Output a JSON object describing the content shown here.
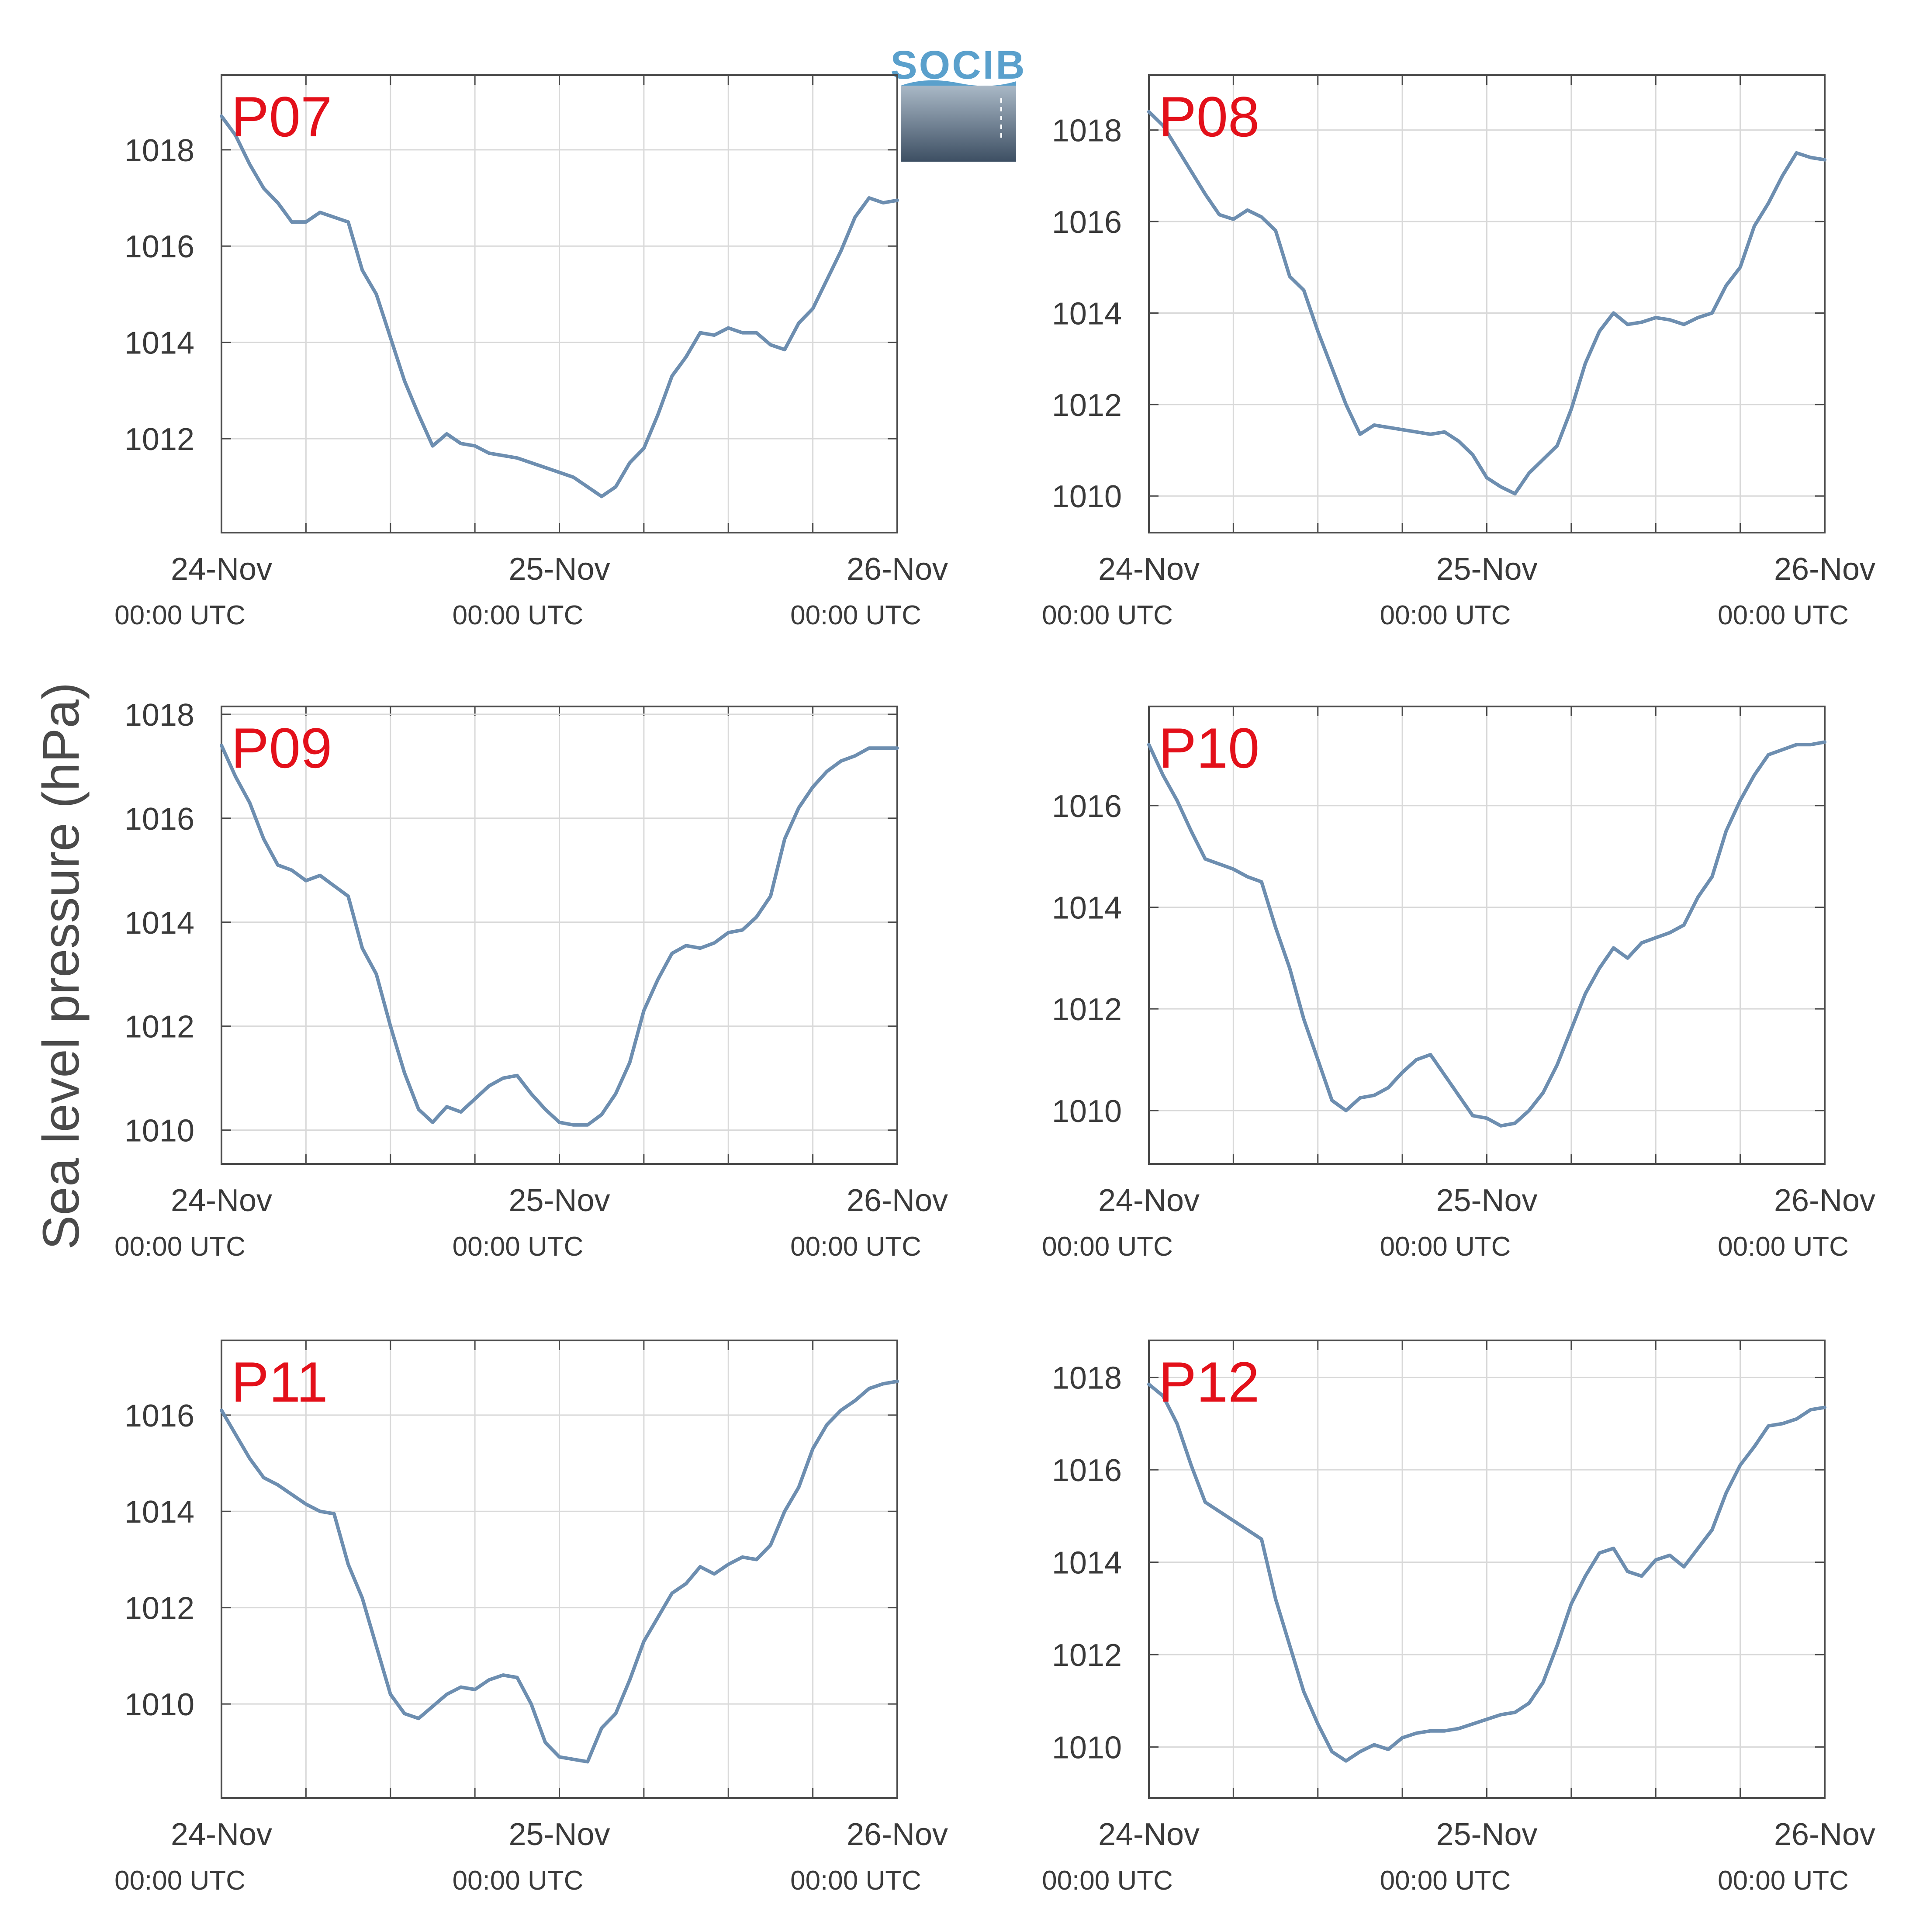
{
  "logo": {
    "text": "SOCIB"
  },
  "figure": {
    "ylabel": "Sea level pressure (hPa)",
    "line_color": "#6d8eb0",
    "panel_label_color": "#e3101a",
    "grid_color": "#d9d9d9",
    "axis_color": "#4a4a4a"
  },
  "chart_data": [
    {
      "type": "line",
      "label": "P07",
      "xlim": [
        0,
        48
      ],
      "ylim": [
        1010.05,
        1019.55
      ],
      "x_ticks": [
        0,
        24,
        48
      ],
      "x_tick_labels": [
        "24-Nov",
        "25-Nov",
        "26-Nov"
      ],
      "x_tick_sublabels": [
        "00:00 UTC",
        "00:00 UTC",
        "00:00 UTC"
      ],
      "y_ticks": [
        1012,
        1014,
        1016,
        1018
      ],
      "grid": true,
      "x": [
        0,
        1,
        2,
        3,
        4,
        5,
        6,
        7,
        8,
        9,
        10,
        11,
        12,
        13,
        14,
        15,
        16,
        17,
        18,
        19,
        20,
        21,
        22,
        23,
        24,
        25,
        26,
        27,
        28,
        29,
        30,
        31,
        32,
        33,
        34,
        35,
        36,
        37,
        38,
        39,
        40,
        41,
        42,
        43,
        44,
        45,
        46,
        47,
        48
      ],
      "y": [
        1018.7,
        1018.3,
        1017.7,
        1017.2,
        1016.9,
        1016.5,
        1016.5,
        1016.7,
        1016.6,
        1016.5,
        1015.5,
        1015.0,
        1014.1,
        1013.2,
        1012.5,
        1011.85,
        1012.1,
        1011.9,
        1011.85,
        1011.7,
        1011.65,
        1011.6,
        1011.5,
        1011.4,
        1011.3,
        1011.2,
        1011.0,
        1010.8,
        1011.0,
        1011.5,
        1011.8,
        1012.5,
        1013.3,
        1013.7,
        1014.2,
        1014.15,
        1014.3,
        1014.2,
        1014.2,
        1013.95,
        1013.85,
        1014.4,
        1014.7,
        1015.3,
        1015.9,
        1016.6,
        1017.0,
        1016.9,
        1016.95
      ]
    },
    {
      "type": "line",
      "label": "P08",
      "xlim": [
        0,
        48
      ],
      "ylim": [
        1009.2,
        1019.2
      ],
      "x_ticks": [
        0,
        24,
        48
      ],
      "x_tick_labels": [
        "24-Nov",
        "25-Nov",
        "26-Nov"
      ],
      "x_tick_sublabels": [
        "00:00 UTC",
        "00:00 UTC",
        "00:00 UTC"
      ],
      "y_ticks": [
        1010,
        1012,
        1014,
        1016,
        1018
      ],
      "grid": true,
      "x": [
        0,
        1,
        2,
        3,
        4,
        5,
        6,
        7,
        8,
        9,
        10,
        11,
        12,
        13,
        14,
        15,
        16,
        17,
        18,
        19,
        20,
        21,
        22,
        23,
        24,
        25,
        26,
        27,
        28,
        29,
        30,
        31,
        32,
        33,
        34,
        35,
        36,
        37,
        38,
        39,
        40,
        41,
        42,
        43,
        44,
        45,
        46,
        47,
        48
      ],
      "y": [
        1018.4,
        1018.1,
        1017.6,
        1017.1,
        1016.6,
        1016.15,
        1016.05,
        1016.25,
        1016.1,
        1015.8,
        1014.8,
        1014.5,
        1013.6,
        1012.8,
        1012.0,
        1011.35,
        1011.55,
        1011.5,
        1011.45,
        1011.4,
        1011.35,
        1011.4,
        1011.2,
        1010.9,
        1010.4,
        1010.2,
        1010.05,
        1010.5,
        1010.8,
        1011.1,
        1011.9,
        1012.9,
        1013.6,
        1014.0,
        1013.75,
        1013.8,
        1013.9,
        1013.85,
        1013.75,
        1013.9,
        1014.0,
        1014.6,
        1015.0,
        1015.9,
        1016.4,
        1017.0,
        1017.5,
        1017.4,
        1017.35
      ]
    },
    {
      "type": "line",
      "label": "P09",
      "xlim": [
        0,
        48
      ],
      "ylim": [
        1009.35,
        1018.15
      ],
      "x_ticks": [
        0,
        24,
        48
      ],
      "x_tick_labels": [
        "24-Nov",
        "25-Nov",
        "26-Nov"
      ],
      "x_tick_sublabels": [
        "00:00 UTC",
        "00:00 UTC",
        "00:00 UTC"
      ],
      "y_ticks": [
        1010,
        1012,
        1014,
        1016,
        1018
      ],
      "grid": true,
      "x": [
        0,
        1,
        2,
        3,
        4,
        5,
        6,
        7,
        8,
        9,
        10,
        11,
        12,
        13,
        14,
        15,
        16,
        17,
        18,
        19,
        20,
        21,
        22,
        23,
        24,
        25,
        26,
        27,
        28,
        29,
        30,
        31,
        32,
        33,
        34,
        35,
        36,
        37,
        38,
        39,
        40,
        41,
        42,
        43,
        44,
        45,
        46,
        47,
        48
      ],
      "y": [
        1017.4,
        1016.8,
        1016.3,
        1015.6,
        1015.1,
        1015.0,
        1014.8,
        1014.9,
        1014.7,
        1014.5,
        1013.5,
        1013.0,
        1012.0,
        1011.1,
        1010.4,
        1010.15,
        1010.45,
        1010.35,
        1010.6,
        1010.85,
        1011.0,
        1011.05,
        1010.7,
        1010.4,
        1010.15,
        1010.1,
        1010.1,
        1010.3,
        1010.7,
        1011.3,
        1012.3,
        1012.9,
        1013.4,
        1013.55,
        1013.5,
        1013.6,
        1013.8,
        1013.85,
        1014.1,
        1014.5,
        1015.6,
        1016.2,
        1016.6,
        1016.9,
        1017.1,
        1017.2,
        1017.35,
        1017.35,
        1017.35
      ]
    },
    {
      "type": "line",
      "label": "P10",
      "xlim": [
        0,
        48
      ],
      "ylim": [
        1008.95,
        1017.95
      ],
      "x_ticks": [
        0,
        24,
        48
      ],
      "x_tick_labels": [
        "24-Nov",
        "25-Nov",
        "26-Nov"
      ],
      "x_tick_sublabels": [
        "00:00 UTC",
        "00:00 UTC",
        "00:00 UTC"
      ],
      "y_ticks": [
        1010,
        1012,
        1014,
        1016
      ],
      "grid": true,
      "x": [
        0,
        1,
        2,
        3,
        4,
        5,
        6,
        7,
        8,
        9,
        10,
        11,
        12,
        13,
        14,
        15,
        16,
        17,
        18,
        19,
        20,
        21,
        22,
        23,
        24,
        25,
        26,
        27,
        28,
        29,
        30,
        31,
        32,
        33,
        34,
        35,
        36,
        37,
        38,
        39,
        40,
        41,
        42,
        43,
        44,
        45,
        46,
        47,
        48
      ],
      "y": [
        1017.2,
        1016.6,
        1016.1,
        1015.5,
        1014.95,
        1014.85,
        1014.75,
        1014.6,
        1014.5,
        1013.6,
        1012.8,
        1011.8,
        1011.0,
        1010.2,
        1010.0,
        1010.25,
        1010.3,
        1010.45,
        1010.75,
        1011.0,
        1011.1,
        1010.7,
        1010.3,
        1009.9,
        1009.85,
        1009.7,
        1009.75,
        1010.0,
        1010.35,
        1010.9,
        1011.6,
        1012.3,
        1012.8,
        1013.2,
        1013.0,
        1013.3,
        1013.4,
        1013.5,
        1013.65,
        1014.2,
        1014.6,
        1015.5,
        1016.1,
        1016.6,
        1017.0,
        1017.1,
        1017.2,
        1017.2,
        1017.25
      ]
    },
    {
      "type": "line",
      "label": "P11",
      "xlim": [
        0,
        48
      ],
      "ylim": [
        1008.05,
        1017.55
      ],
      "x_ticks": [
        0,
        24,
        48
      ],
      "x_tick_labels": [
        "24-Nov",
        "25-Nov",
        "26-Nov"
      ],
      "x_tick_sublabels": [
        "00:00 UTC",
        "00:00 UTC",
        "00:00 UTC"
      ],
      "y_ticks": [
        1010,
        1012,
        1014,
        1016
      ],
      "grid": true,
      "x": [
        0,
        1,
        2,
        3,
        4,
        5,
        6,
        7,
        8,
        9,
        10,
        11,
        12,
        13,
        14,
        15,
        16,
        17,
        18,
        19,
        20,
        21,
        22,
        23,
        24,
        25,
        26,
        27,
        28,
        29,
        30,
        31,
        32,
        33,
        34,
        35,
        36,
        37,
        38,
        39,
        40,
        41,
        42,
        43,
        44,
        45,
        46,
        47,
        48
      ],
      "y": [
        1016.1,
        1015.6,
        1015.1,
        1014.7,
        1014.55,
        1014.35,
        1014.15,
        1014.0,
        1013.95,
        1012.9,
        1012.2,
        1011.2,
        1010.2,
        1009.8,
        1009.7,
        1009.95,
        1010.2,
        1010.35,
        1010.3,
        1010.5,
        1010.6,
        1010.55,
        1010.0,
        1009.2,
        1008.9,
        1008.85,
        1008.8,
        1009.5,
        1009.8,
        1010.5,
        1011.3,
        1011.8,
        1012.3,
        1012.5,
        1012.85,
        1012.7,
        1012.9,
        1013.05,
        1013.0,
        1013.3,
        1014.0,
        1014.5,
        1015.3,
        1015.8,
        1016.1,
        1016.3,
        1016.55,
        1016.65,
        1016.7
      ]
    },
    {
      "type": "line",
      "label": "P12",
      "xlim": [
        0,
        48
      ],
      "ylim": [
        1008.9,
        1018.8
      ],
      "x_ticks": [
        0,
        24,
        48
      ],
      "x_tick_labels": [
        "24-Nov",
        "25-Nov",
        "26-Nov"
      ],
      "x_tick_sublabels": [
        "00:00 UTC",
        "00:00 UTC",
        "00:00 UTC"
      ],
      "y_ticks": [
        1010,
        1012,
        1014,
        1016,
        1018
      ],
      "grid": true,
      "x": [
        0,
        1,
        2,
        3,
        4,
        5,
        6,
        7,
        8,
        9,
        10,
        11,
        12,
        13,
        14,
        15,
        16,
        17,
        18,
        19,
        20,
        21,
        22,
        23,
        24,
        25,
        26,
        27,
        28,
        29,
        30,
        31,
        32,
        33,
        34,
        35,
        36,
        37,
        38,
        39,
        40,
        41,
        42,
        43,
        44,
        45,
        46,
        47,
        48
      ],
      "y": [
        1017.85,
        1017.6,
        1017.0,
        1016.1,
        1015.3,
        1015.1,
        1014.9,
        1014.7,
        1014.5,
        1013.2,
        1012.2,
        1011.2,
        1010.5,
        1009.9,
        1009.7,
        1009.9,
        1010.05,
        1009.95,
        1010.2,
        1010.3,
        1010.35,
        1010.35,
        1010.4,
        1010.5,
        1010.6,
        1010.7,
        1010.75,
        1010.95,
        1011.4,
        1012.2,
        1013.1,
        1013.7,
        1014.2,
        1014.3,
        1013.8,
        1013.7,
        1014.05,
        1014.15,
        1013.9,
        1014.3,
        1014.7,
        1015.5,
        1016.1,
        1016.5,
        1016.95,
        1017.0,
        1017.1,
        1017.3,
        1017.35
      ]
    }
  ]
}
